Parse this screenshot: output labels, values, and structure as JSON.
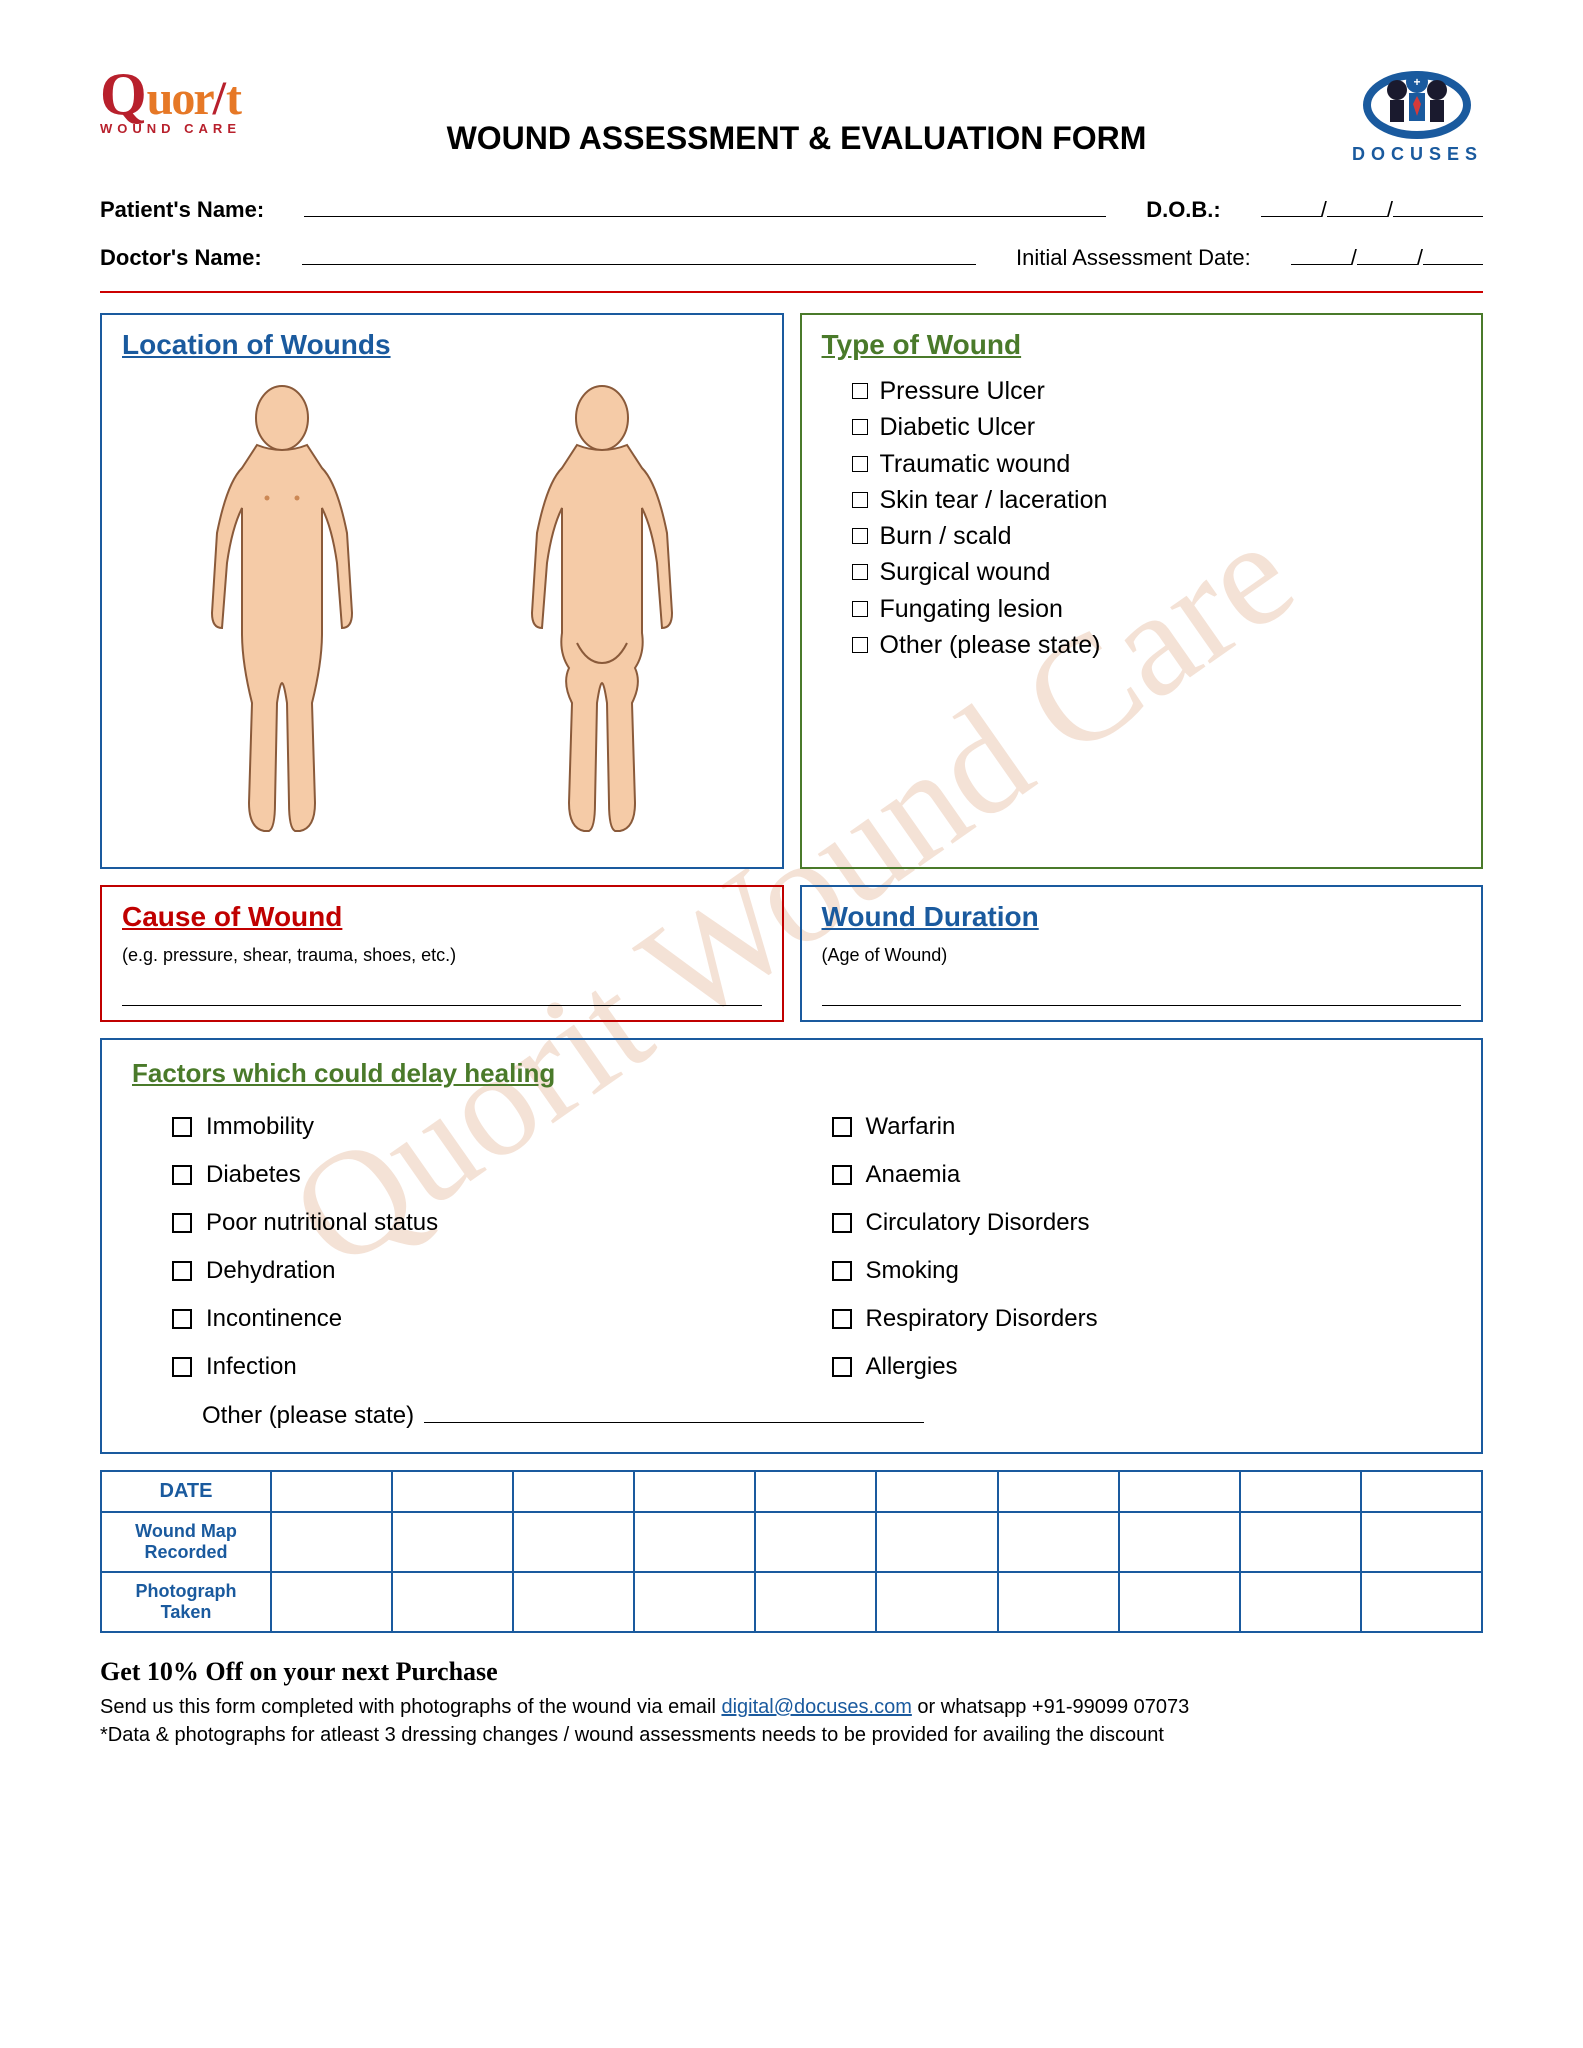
{
  "watermark_text": "Quorit Wound Care",
  "logo_left": {
    "q": "Q",
    "uor": "uor",
    "slash": "/",
    "t": "t",
    "sub": "WOUND CARE"
  },
  "logo_right_label": "DOCUSES",
  "form_title": "WOUND ASSESSMENT & EVALUATION FORM",
  "fields": {
    "patient_label": "Patient's Name:",
    "dob_label": "D.O.B.:",
    "doctor_label": "Doctor's Name:",
    "assessment_label": "Initial Assessment Date:",
    "slash": "/"
  },
  "location_box": {
    "title": "Location of Wounds",
    "border_color": "#1a5a9e",
    "title_color": "#1a5a9e"
  },
  "type_box": {
    "title": "Type of Wound",
    "border_color": "#4a7a2a",
    "title_color": "#4a7a2a",
    "items": [
      "Pressure Ulcer",
      "Diabetic Ulcer",
      "Traumatic wound",
      "Skin tear / laceration",
      "Burn / scald",
      "Surgical wound",
      "Fungating lesion",
      "Other (please state)"
    ]
  },
  "cause_box": {
    "title": "Cause of Wound",
    "subtitle": "(e.g. pressure, shear, trauma, shoes, etc.)",
    "border_color": "#c00000",
    "title_color": "#c00000"
  },
  "duration_box": {
    "title": "Wound Duration",
    "subtitle": "(Age of Wound)",
    "border_color": "#1a5a9e",
    "title_color": "#1a5a9e"
  },
  "factors": {
    "title": "Factors which could delay healing",
    "col1": [
      "Immobility",
      "Diabetes",
      "Poor nutritional status",
      "Dehydration",
      "Incontinence",
      "Infection"
    ],
    "col2": [
      "Warfarin",
      "Anaemia",
      "Circulatory Disorders",
      "Smoking",
      "Respiratory Disorders",
      "Allergies"
    ],
    "other_label": "Other (please state)"
  },
  "date_table": {
    "header": "DATE",
    "rows": [
      "Wound Map Recorded",
      "Photograph Taken"
    ],
    "blank_cols": 10
  },
  "footer": {
    "promo": "Get 10% Off on your next Purchase",
    "line1a": "Send us this form completed with photographs of the wound via email ",
    "email": "digital@docuses.com",
    "line1b": " or whatsapp +91-99099 07073",
    "line2": "*Data & photographs for atleast 3 dressing changes / wound assessments needs to be provided for availing the discount"
  },
  "colors": {
    "skin": "#f5cba7",
    "outline": "#8a5a3a"
  }
}
